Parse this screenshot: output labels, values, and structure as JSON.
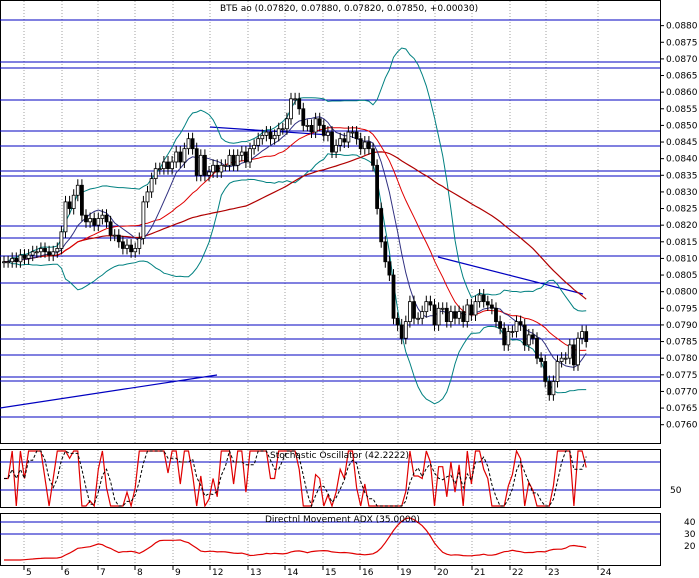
{
  "chart_data": [
    {
      "type": "candlestick",
      "title": "ВТБ ао (0.07820, 0.07880, 0.07820, 0.07850, +0.00030)",
      "y_ticks": [
        "0.0880",
        "0.0875",
        "0.0870",
        "0.0865",
        "0.0860",
        "0.0855",
        "0.0850",
        "0.0845",
        "0.0840",
        "0.0835",
        "0.0830",
        "0.0825",
        "0.0820",
        "0.0815",
        "0.0810",
        "0.0805",
        "0.0800",
        "0.0795",
        "0.0790",
        "0.0785",
        "0.0780",
        "0.0775",
        "0.0770",
        "0.0765",
        "0.0760"
      ],
      "ylim": [
        0.0756,
        0.08835
      ],
      "close": [
        0.0809,
        0.0809,
        0.081,
        0.0809,
        0.0811,
        0.081,
        0.0811,
        0.0812,
        0.0812,
        0.0813,
        0.0812,
        0.0811,
        0.0812,
        0.0813,
        0.0818,
        0.0827,
        0.0825,
        0.0829,
        0.0832,
        0.0823,
        0.0821,
        0.0822,
        0.082,
        0.0822,
        0.0823,
        0.0821,
        0.0817,
        0.0817,
        0.0815,
        0.0813,
        0.0814,
        0.0812,
        0.0813,
        0.0816,
        0.0827,
        0.083,
        0.0834,
        0.0837,
        0.0837,
        0.0839,
        0.0837,
        0.0839,
        0.0842,
        0.0839,
        0.0843,
        0.0846,
        0.0843,
        0.0835,
        0.0841,
        0.0835,
        0.0836,
        0.0838,
        0.0836,
        0.0838,
        0.0838,
        0.0841,
        0.0838,
        0.0841,
        0.0842,
        0.0839,
        0.0843,
        0.0844,
        0.0846,
        0.0847,
        0.0848,
        0.0846,
        0.0847,
        0.0849,
        0.0849,
        0.0852,
        0.0858,
        0.0858,
        0.0855,
        0.085,
        0.085,
        0.0848,
        0.0852,
        0.085,
        0.0847,
        0.0848,
        0.0842,
        0.0844,
        0.0846,
        0.0845,
        0.0848,
        0.0848,
        0.0846,
        0.0843,
        0.0845,
        0.0843,
        0.0838,
        0.0825,
        0.0815,
        0.0809,
        0.0805,
        0.0792,
        0.079,
        0.0786,
        0.0791,
        0.0797,
        0.0792,
        0.0792,
        0.0794,
        0.0797,
        0.0796,
        0.079,
        0.0795,
        0.0795,
        0.0791,
        0.0794,
        0.0792,
        0.0794,
        0.0791,
        0.0796,
        0.0793,
        0.0797,
        0.0799,
        0.0797,
        0.0796,
        0.0795,
        0.0791,
        0.0789,
        0.0784,
        0.0788,
        0.0788,
        0.0791,
        0.079,
        0.0784,
        0.0787,
        0.0786,
        0.078,
        0.0779,
        0.0773,
        0.0769,
        0.0773,
        0.0779,
        0.078,
        0.078,
        0.0784,
        0.0778,
        0.0786,
        0.0788,
        0.0785
      ]
    },
    {
      "type": "line",
      "title": "Stochastic Oscillator (42.2222)",
      "y_ticks": [
        "50"
      ],
      "ylim": [
        0,
        100
      ]
    },
    {
      "type": "line",
      "title": "Directnl Movement ADX (35.0000)",
      "y_ticks": [
        "40",
        "30",
        "20"
      ],
      "ylim": [
        15,
        45
      ]
    }
  ],
  "x_ticks": [
    "5",
    "6",
    "7",
    "8",
    "9",
    "12",
    "13",
    "14",
    "15",
    "16",
    "19",
    "20",
    "21",
    "22",
    "23",
    "24"
  ],
  "colors": {
    "candle": "#000000",
    "hline": "#0000c0",
    "ma_slow": "#b00000",
    "ma_fast": "#e00000",
    "bollinger": "#008080",
    "stoch_k": "#e00000",
    "stoch_d": "#000000",
    "adx": "#e00000",
    "grid": "#a0a0a0"
  }
}
